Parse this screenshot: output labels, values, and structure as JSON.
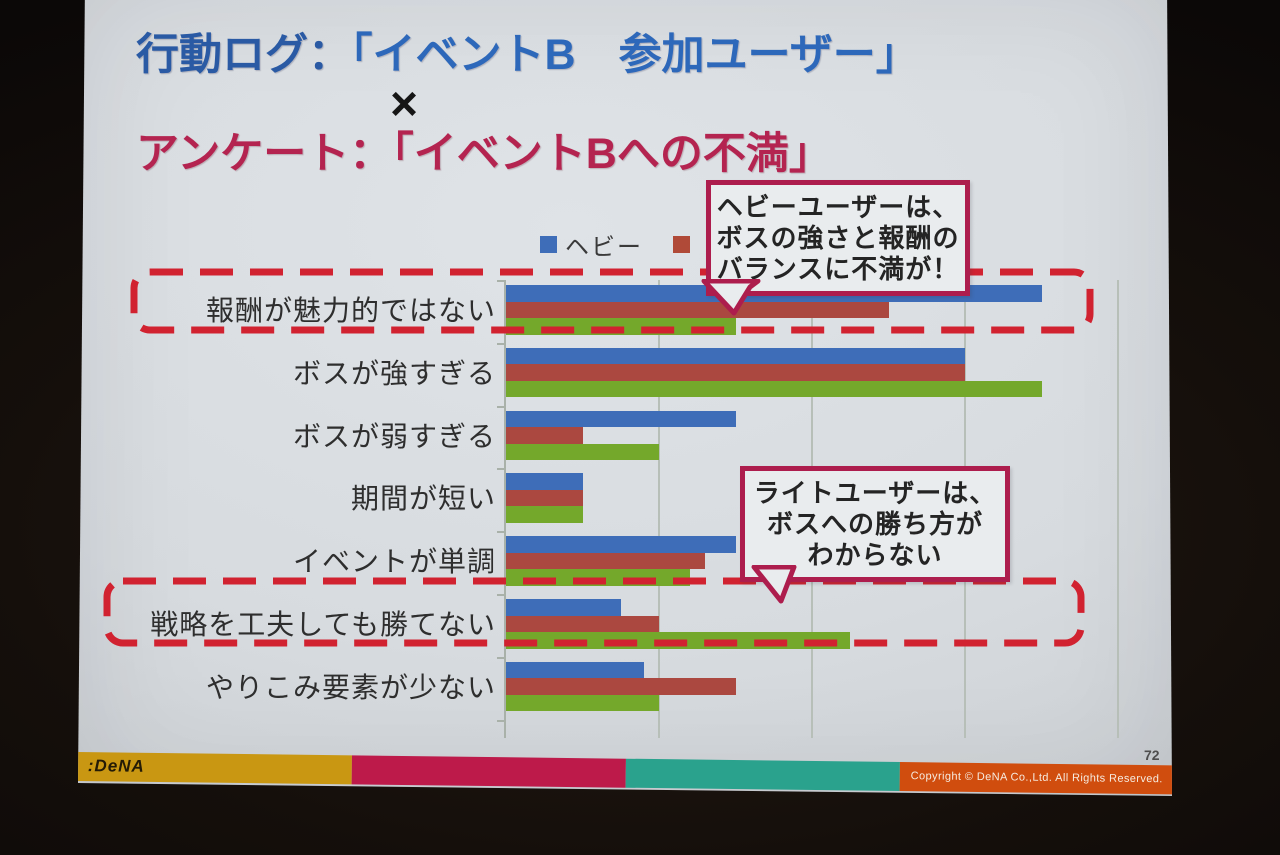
{
  "slide": {
    "title": {
      "line1_prefix": "行動ログ：",
      "line1_highlight": "「イベントB　参加ユーザー」",
      "times_symbol": "×",
      "line2": "アンケート：「イベントBへの不満」"
    },
    "legend": {
      "items": [
        {
          "label": "ヘビー",
          "color": "#3e6db8"
        },
        {
          "label": "",
          "color": "#b04a38"
        }
      ]
    },
    "callouts": [
      {
        "lines": [
          "ヘビーユーザーは、",
          "ボスの強さと報酬の",
          "バランスに不満が！"
        ]
      },
      {
        "lines": [
          "ライトユーザーは、",
          "ボスへの勝ち方が",
          "わからない"
        ]
      }
    ],
    "footer": {
      "logo_text": ":DeNA",
      "copyright": "Copyright © DeNA Co.,Ltd. All Rights Reserved.",
      "page_number": "72",
      "segment_colors": [
        "#c99712",
        "#bd1a4a",
        "#2aa28d",
        "#d04d0e"
      ]
    }
  },
  "chart_data": {
    "type": "bar",
    "orientation": "horizontal",
    "title": "",
    "categories": [
      "報酬が魅力的ではない",
      "ボスが強すぎる",
      "ボスが弱すぎる",
      "期間が短い",
      "イベントが単調",
      "戦略を工夫しても勝てない",
      "やりこみ要素が少ない"
    ],
    "series": [
      {
        "name": "ヘビー",
        "color": "#3e6db8",
        "values": [
          35,
          30,
          15,
          5,
          15,
          7.5,
          9
        ]
      },
      {
        "name": "",
        "color": "#ab4840",
        "values": [
          25,
          30,
          5,
          5,
          13,
          10,
          15
        ]
      },
      {
        "name": "",
        "color": "#74a82b",
        "values": [
          15,
          35,
          10,
          5,
          12,
          22.5,
          10
        ]
      }
    ],
    "x_axis": {
      "min": 0,
      "max": 40,
      "gridline_interval": 10,
      "tick_labels_visible": false
    },
    "grid": true,
    "legend_position": "top",
    "highlighted_categories": [
      "報酬が魅力的ではない",
      "戦略を工夫しても勝てない"
    ],
    "highlight_style": "red-dashed-rounded-box"
  },
  "colors": {
    "slide_background": "#d9dde1",
    "photo_background": "#150f0b",
    "title_blue": "#2d68ba",
    "title_pink": "#b42450",
    "dashed_box_red": "#d12230",
    "callout_border": "#ad1d4d",
    "gridline": "#b7bfb8"
  }
}
